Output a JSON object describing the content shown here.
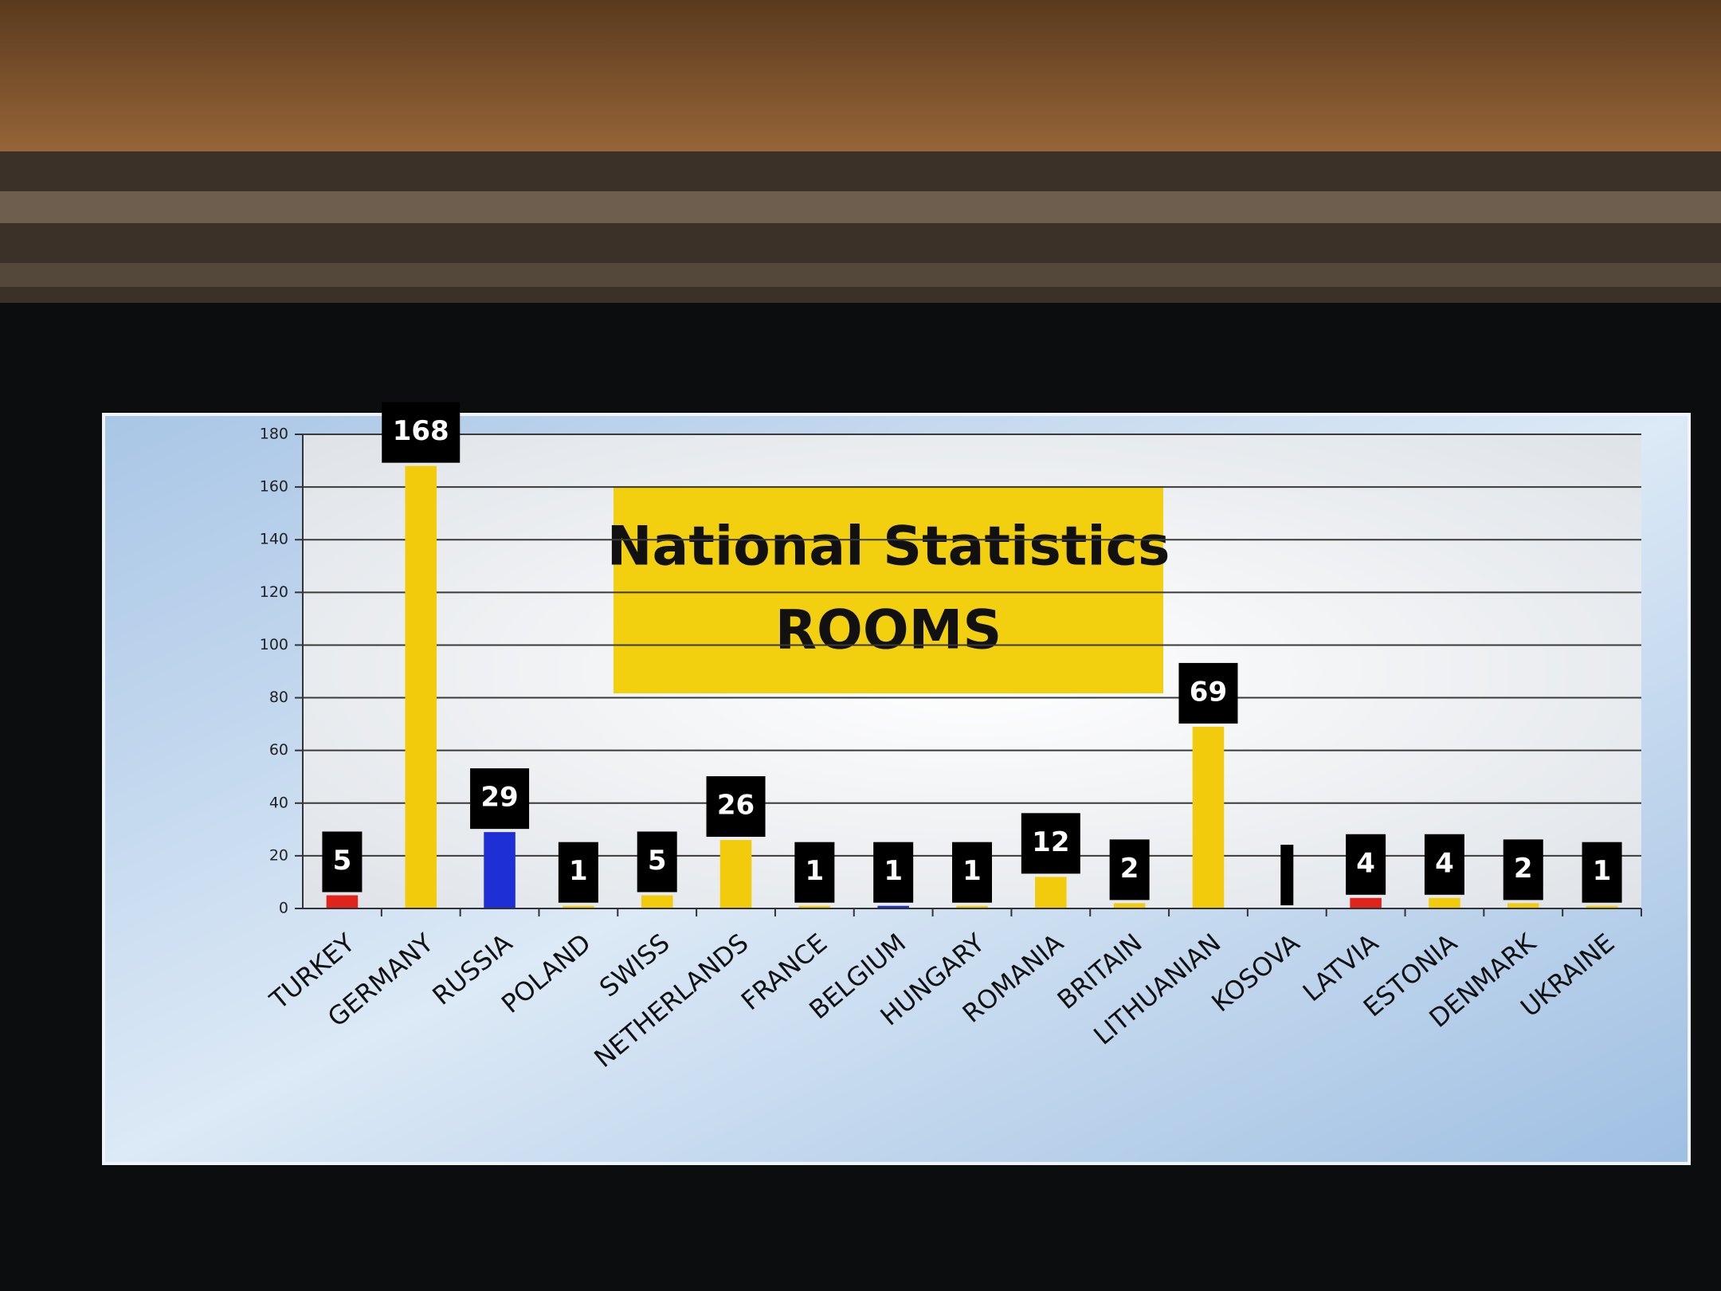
{
  "chart_data": {
    "type": "bar",
    "title": "National Statistics",
    "subtitle": "ROOMS",
    "categories": [
      "TURKEY",
      "GERMANY",
      "RUSSIA",
      "POLAND",
      "SWISS",
      "NETHERLANDS",
      "FRANCE",
      "BELGIUM",
      "HUNGARY",
      "ROMANIA",
      "BRITAIN",
      "LITHUANIAN",
      "KOSOVA",
      "LATVIA",
      "ESTONIA",
      "DENMARK",
      "UKRAINE"
    ],
    "values": [
      5,
      168,
      29,
      1,
      5,
      26,
      1,
      1,
      1,
      12,
      2,
      69,
      null,
      4,
      4,
      2,
      1
    ],
    "colors": [
      "#e0241b",
      "#f2cc0c",
      "#1f2fd6",
      "#f2cc0c",
      "#f2cc0c",
      "#f2cc0c",
      "#f2cc0c",
      "#1f2fd6",
      "#f2cc0c",
      "#f2cc0c",
      "#f2cc0c",
      "#f2cc0c",
      "#f2cc0c",
      "#e0241b",
      "#f2cc0c",
      "#f2cc0c",
      "#f2cc0c"
    ],
    "ylim": [
      0,
      180
    ],
    "yticks": [
      0,
      20,
      40,
      60,
      80,
      100,
      120,
      140,
      160,
      180
    ],
    "grid": true
  }
}
